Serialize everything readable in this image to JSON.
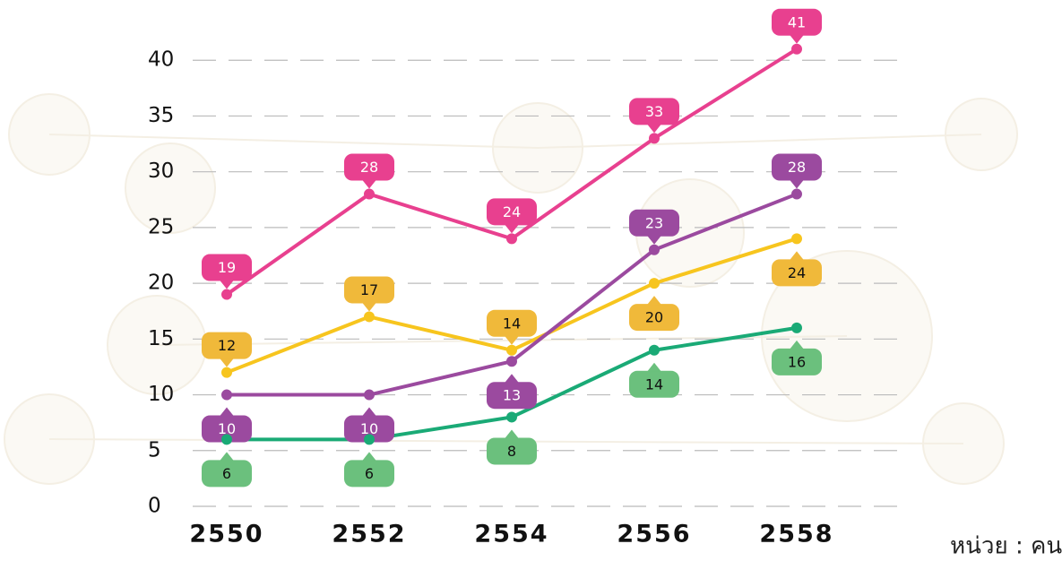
{
  "chart_data": {
    "type": "line",
    "categories": [
      "2550",
      "2552",
      "2554",
      "2556",
      "2558"
    ],
    "series": [
      {
        "color": "#e8408f",
        "label_color": "#e8408f",
        "values": [
          19,
          28,
          24,
          33,
          41
        ]
      },
      {
        "color": "#f7c51e",
        "label_color": "#f0b93a",
        "values": [
          12,
          17,
          14,
          20,
          24
        ]
      },
      {
        "color": "#9b4a9f",
        "label_color": "#9b4a9f",
        "values": [
          10,
          10,
          13,
          23,
          28
        ]
      },
      {
        "color": "#1aaa76",
        "label_color": "#6bc07d",
        "values": [
          6,
          6,
          8,
          14,
          16
        ]
      }
    ],
    "ylim": [
      0,
      45
    ],
    "yticks": [
      0,
      5,
      10,
      15,
      20,
      25,
      30,
      35,
      40
    ],
    "grid": true,
    "unit": "หน่วย : คน"
  }
}
